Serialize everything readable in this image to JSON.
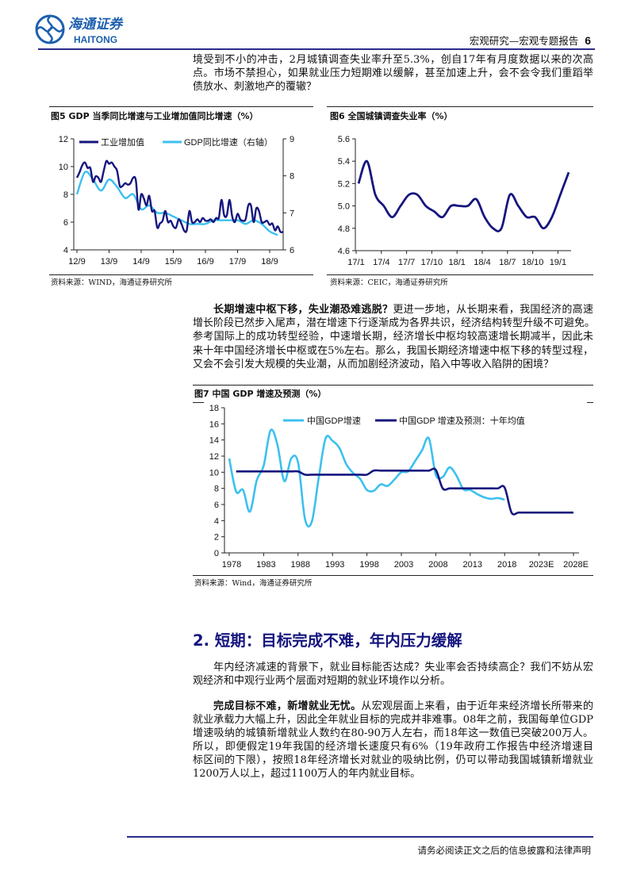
{
  "header": {
    "logo_cn": "海通证券",
    "logo_en": "HAITONG",
    "section": "宏观研究—宏观专题报告",
    "page_number": "6"
  },
  "paragraphs": {
    "intro": {
      "lines": [
        "境受到不小的冲击，2月城镇调查失业率升至5.3%，创自17年有月度数据以来的次高",
        "点。市场不禁担心，如果就业压力短期难以缓解，甚至加速上升，会不会令我们重蹈举",
        "债放水、刺激地产的覆辙？"
      ]
    },
    "long_term": {
      "lead": "长期增速中枢下移，失业潮恐难逃脱？",
      "lines": [
        "更进一步地，从长期来看，我国经济的高速",
        "增长阶段已然步入尾声，潜在增速下行逐渐成为各界共识，经济结构转型升级不可避免。",
        "参考国际上的成功转型经验，中速增长期，经济增长中枢均较高速增长期减半，因此未",
        "来十年中国经济增长中枢或在5%左右。那么，我国长期经济增速中枢下移的转型过程，",
        "又会不会引发大规模的失业潮，从而加剧经济波动，陷入中等收入陷阱的困境？"
      ]
    },
    "short_intro": {
      "lines": [
        "年内经济减速的背景下，就业目标能否达成？失业率会否持续高企？我们不妨从宏",
        "观经济和中观行业两个层面对短期的就业环境作以分析。"
      ]
    },
    "target": {
      "lead": "完成目标不难，新增就业无忧。",
      "lines": [
        "从宏观层面上来看，由于近年来经济增长所带来的",
        "就业承载力大幅上升，因此全年就业目标的完成并非难事。08年之前，我国每单位GDP",
        "增速吸纳的城镇新增就业人数约在80-90万人左右，而18年这一数值已突破200万人。",
        "所以，即便假定19年我国的经济增长速度只有6%（19年政府工作报告中经济增速目",
        "标区间的下限），按照18年经济增长对就业的吸纳比例，仍可以带动我国城镇新增就业",
        "1200万人以上，超过1100万人的年内就业目标。"
      ]
    }
  },
  "section_heading": "2. 短期：目标完成不难，年内压力缓解",
  "footer": "请务必阅读正文之后的信息披露和法律声明",
  "colors": {
    "dark_series": "#16167e",
    "light_series": "#3cc0ef",
    "heading": "#15157f",
    "rule": "#2a2a8c",
    "logo": "#1d5fae"
  },
  "chart_data": [
    {
      "id": "fig5",
      "title": "图5  GDP 当季同比增速与工业增加值同比增速（%）",
      "source": "资料来源：WIND，海通证券研究所",
      "type": "line",
      "x_ticks": [
        "12/9",
        "13/9",
        "14/9",
        "15/9",
        "16/9",
        "17/9",
        "18/9"
      ],
      "ylim": [
        4,
        12
      ],
      "y_ticks": [
        "4",
        "6",
        "8",
        "10",
        "12"
      ],
      "y2lim": [
        6,
        9
      ],
      "y2_ticks": [
        "6",
        "7",
        "8",
        "9"
      ],
      "legend_position": "top",
      "series": [
        {
          "name": "工业增加值",
          "axis": "left",
          "frequency": "monthly",
          "start": "2012/9",
          "values": [
            9.2,
            9.6,
            10.1,
            10.3,
            9.9,
            9.9,
            8.9,
            9.3,
            9.2,
            8.9,
            9.7,
            10.4,
            10.2,
            10.3,
            10.0,
            9.7,
            8.6,
            8.6,
            8.8,
            8.7,
            8.8,
            9.2,
            9.0,
            6.9,
            8.0,
            7.7,
            7.2,
            7.9,
            6.8,
            6.8,
            5.6,
            5.9,
            6.1,
            6.8,
            6.0,
            6.1,
            5.7,
            5.6,
            6.2,
            5.9,
            5.4,
            5.4,
            6.8,
            6.0,
            6.0,
            6.2,
            6.0,
            6.3,
            6.1,
            6.1,
            6.2,
            6.0,
            6.3,
            6.3,
            7.6,
            6.5,
            6.5,
            7.6,
            6.4,
            6.0,
            6.6,
            6.2,
            6.1,
            6.2,
            7.2,
            7.2,
            6.0,
            7.0,
            6.8,
            6.0,
            6.0,
            6.1,
            5.8,
            5.9,
            5.4,
            5.7,
            5.3,
            5.3
          ]
        },
        {
          "name": "GDP同比增速（右轴）",
          "axis": "right",
          "frequency": "quarterly",
          "start": "2012/9",
          "values": [
            7.5,
            8.1,
            7.9,
            7.6,
            7.9,
            7.7,
            7.4,
            7.5,
            7.1,
            7.2,
            7.0,
            7.0,
            6.9,
            6.8,
            6.7,
            6.7,
            6.7,
            6.8,
            6.8,
            6.8,
            6.8,
            6.7,
            6.8,
            6.7,
            6.5,
            6.4
          ]
        }
      ]
    },
    {
      "id": "fig6",
      "title": "图6  全国城镇调查失业率（%）",
      "source": "资料来源：CEIC，海通证券研究所",
      "type": "line",
      "x_ticks": [
        "17/1",
        "17/4",
        "17/7",
        "17/10",
        "18/1",
        "18/4",
        "18/7",
        "18/10",
        "19/1"
      ],
      "ylim": [
        4.6,
        5.6
      ],
      "y_ticks": [
        "4.6",
        "4.8",
        "5.0",
        "5.2",
        "5.4",
        "5.6"
      ],
      "series": [
        {
          "frequency": "monthly",
          "start": "2017/1",
          "values": [
            5.2,
            5.4,
            5.1,
            5.0,
            4.9,
            5.0,
            5.1,
            5.1,
            5.0,
            4.95,
            4.9,
            5.0,
            5.0,
            5.0,
            5.06,
            4.9,
            4.8,
            4.8,
            5.1,
            5.0,
            4.9,
            4.9,
            4.8,
            4.9,
            5.1,
            5.3
          ]
        }
      ]
    },
    {
      "id": "fig7",
      "title": "图7  中国 GDP 增速及预测（%）",
      "source": "资料来源：Wind，海通证券研究所",
      "type": "line",
      "x_ticks": [
        "1978",
        "1983",
        "1988",
        "1993",
        "1998",
        "2003",
        "2008",
        "2013",
        "2018",
        "2023E",
        "2028E"
      ],
      "ylim": [
        0,
        18
      ],
      "y_ticks": [
        "0",
        "2",
        "4",
        "6",
        "8",
        "10",
        "12",
        "14",
        "16",
        "18"
      ],
      "legend_position": "top",
      "series": [
        {
          "name": "中国GDP增速",
          "start_year": 1978,
          "values": [
            11.7,
            7.6,
            7.8,
            5.1,
            9.0,
            10.8,
            15.2,
            13.4,
            8.9,
            11.7,
            11.2,
            4.2,
            3.9,
            9.3,
            14.2,
            13.9,
            13.0,
            11.0,
            9.9,
            9.2,
            7.8,
            7.7,
            8.5,
            8.3,
            9.1,
            10.0,
            10.1,
            11.4,
            12.7,
            14.2,
            9.7,
            9.4,
            10.6,
            9.6,
            7.9,
            7.8,
            7.3,
            6.9,
            6.7,
            6.8,
            6.6
          ]
        },
        {
          "name": "中国GDP 增速及预测：十年均值",
          "start_year": 1979,
          "values": [
            10.1,
            10.1,
            10.1,
            10.1,
            10.1,
            10.1,
            10.1,
            10.1,
            10.1,
            10.1,
            9.7,
            9.7,
            9.7,
            9.7,
            9.7,
            9.7,
            9.7,
            9.7,
            9.7,
            9.7,
            10.2,
            10.2,
            10.2,
            10.2,
            10.2,
            10.2,
            10.2,
            10.2,
            10.2,
            10.3,
            8.0,
            8.0,
            8.0,
            8.0,
            8.0,
            8.0,
            8.0,
            8.0,
            8.0,
            8.1,
            5.0,
            5.0,
            5.0,
            5.0,
            5.0,
            5.0,
            5.0,
            5.0,
            5.0,
            5.0
          ]
        }
      ]
    }
  ]
}
